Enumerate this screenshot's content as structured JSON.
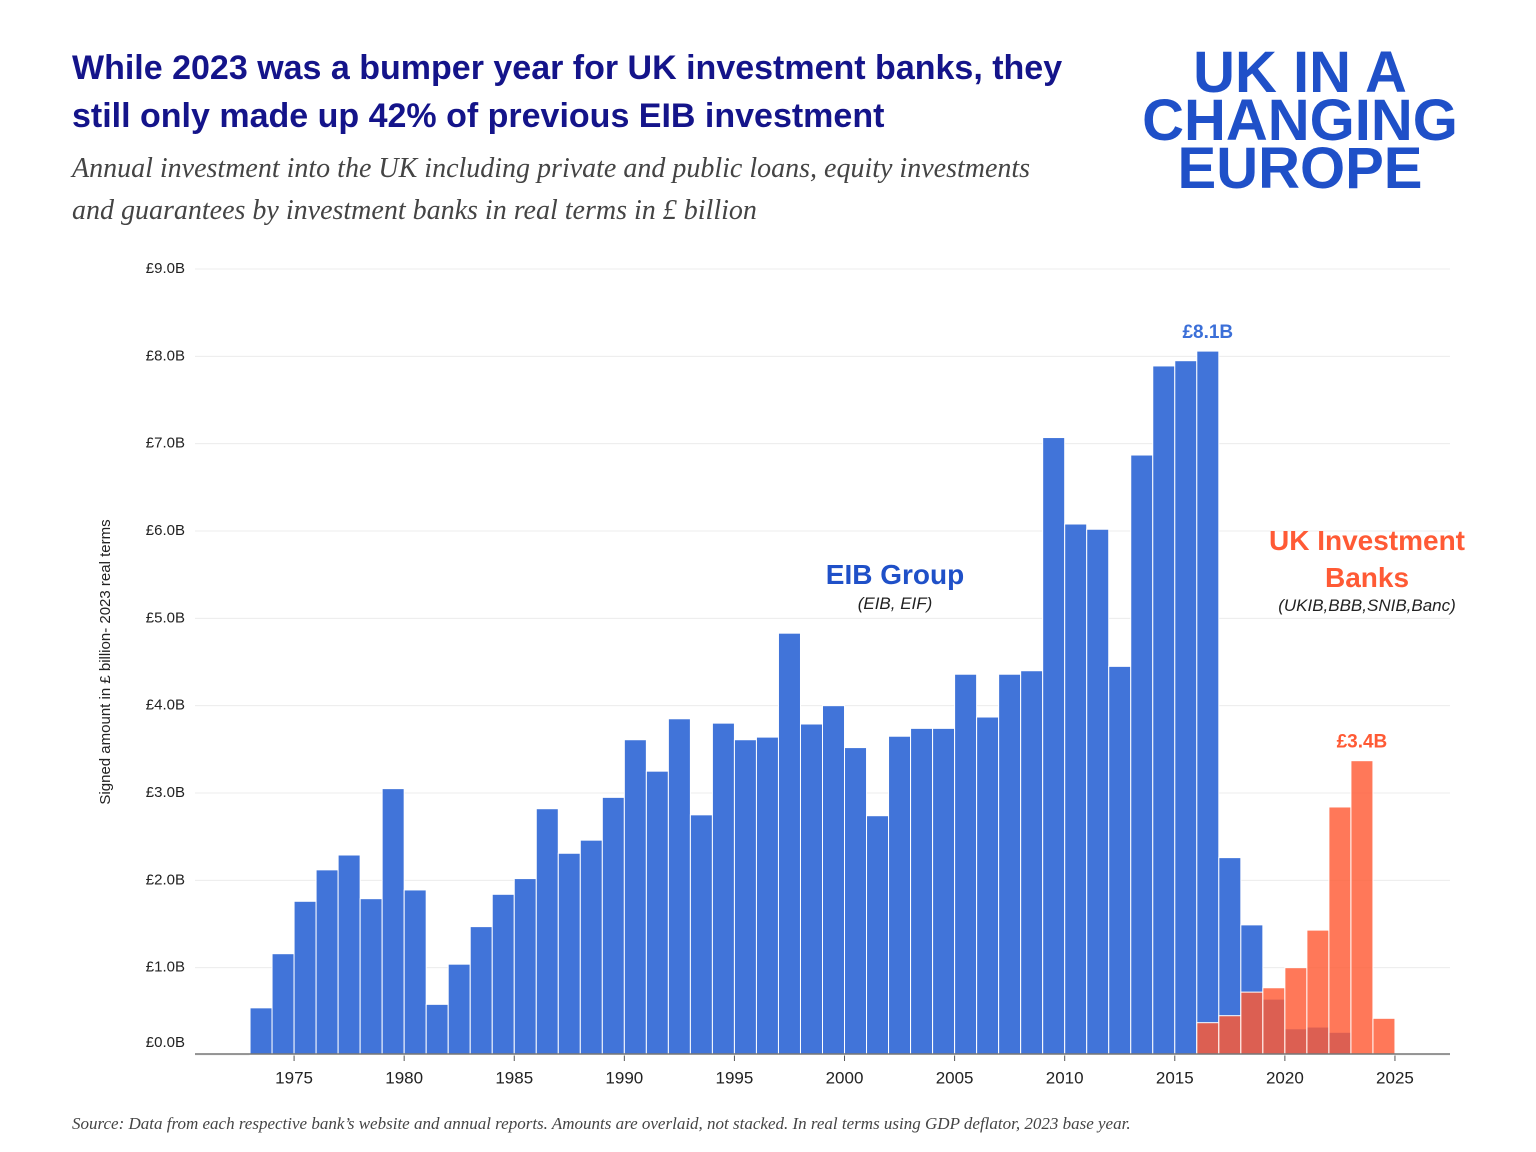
{
  "chart_data": {
    "type": "bar",
    "title": "While 2023 was a bumper year for UK investment banks, they still only made up 42% of previous EIB investment",
    "subtitle": "Annual investment into the UK including private and public loans, equity investments and guarantees by investment banks in real terms in £ billion",
    "logo": [
      "UK IN A",
      "CHANGING",
      "EUROPE"
    ],
    "ylabel": "Signed amount in £ billion- 2023 real terms",
    "source": "Source: Data from each respective bank’s website and annual reports. Amounts are overlaid, not stacked.  In real terms using GDP deflator, 2023 base  year.",
    "xlim": [
      1970.5,
      2027.5
    ],
    "xticks": [
      1975,
      1980,
      1985,
      1990,
      1995,
      2000,
      2005,
      2010,
      2015,
      2020,
      2025
    ],
    "ylim": [
      0,
      9
    ],
    "yticks": [
      {
        "value": 0,
        "label": "£0.0B"
      },
      {
        "value": 1,
        "label": "£1.0B"
      },
      {
        "value": 2,
        "label": "£2.0B"
      },
      {
        "value": 3,
        "label": "£3.0B"
      },
      {
        "value": 4,
        "label": "£4.0B"
      },
      {
        "value": 5,
        "label": "£5.0B"
      },
      {
        "value": 6,
        "label": "£6.0B"
      },
      {
        "value": 7,
        "label": "£7.0B"
      },
      {
        "value": 8,
        "label": "£8.0B"
      },
      {
        "value": 9,
        "label": "£9.0B"
      }
    ],
    "grid": true,
    "series": [
      {
        "name": "EIB Group",
        "note": "(EIB, EIF)",
        "color": "#3b6fd8",
        "x": [
          1973,
          1974,
          1975,
          1976,
          1977,
          1978,
          1979,
          1980,
          1981,
          1982,
          1983,
          1984,
          1985,
          1986,
          1987,
          1988,
          1989,
          1990,
          1991,
          1992,
          1993,
          1994,
          1995,
          1996,
          1997,
          1998,
          1999,
          2000,
          2001,
          2002,
          2003,
          2004,
          2005,
          2006,
          2007,
          2008,
          2009,
          2010,
          2011,
          2012,
          2013,
          2014,
          2015,
          2016,
          2017,
          2018,
          2019,
          2020,
          2021,
          2022
        ],
        "values": [
          0.54,
          1.16,
          1.76,
          2.12,
          2.29,
          1.79,
          3.05,
          1.89,
          0.58,
          1.04,
          1.47,
          1.84,
          2.02,
          2.82,
          2.31,
          2.46,
          2.95,
          3.61,
          3.25,
          3.85,
          2.75,
          3.8,
          3.61,
          3.64,
          4.83,
          3.79,
          4.0,
          3.52,
          2.74,
          3.65,
          3.74,
          3.74,
          4.36,
          3.87,
          4.36,
          4.4,
          7.07,
          6.08,
          6.02,
          4.45,
          6.87,
          7.89,
          7.95,
          8.06,
          2.26,
          1.49,
          0.64,
          0.3,
          0.32,
          0.26
        ],
        "value_labels": [
          null,
          null,
          null,
          null,
          null,
          null,
          null,
          null,
          null,
          null,
          null,
          null,
          null,
          null,
          null,
          null,
          null,
          null,
          null,
          null,
          null,
          null,
          null,
          null,
          null,
          null,
          null,
          null,
          null,
          null,
          null,
          null,
          null,
          null,
          null,
          null,
          null,
          null,
          null,
          null,
          null,
          null,
          null,
          "£8.1B",
          null,
          null,
          null,
          null,
          null,
          null
        ]
      },
      {
        "name": "UK Investment Banks",
        "note": "(UKIB,BBB,SNIB,Banc)",
        "color": "#ff5a35",
        "x": [
          2016,
          2017,
          2018,
          2019,
          2020,
          2021,
          2022,
          2023,
          2024
        ],
        "values": [
          0.37,
          0.45,
          0.72,
          0.77,
          1.0,
          1.43,
          2.84,
          3.37,
          0.42
        ],
        "value_labels": [
          null,
          null,
          null,
          null,
          null,
          null,
          null,
          "£3.4B",
          null
        ]
      }
    ]
  }
}
